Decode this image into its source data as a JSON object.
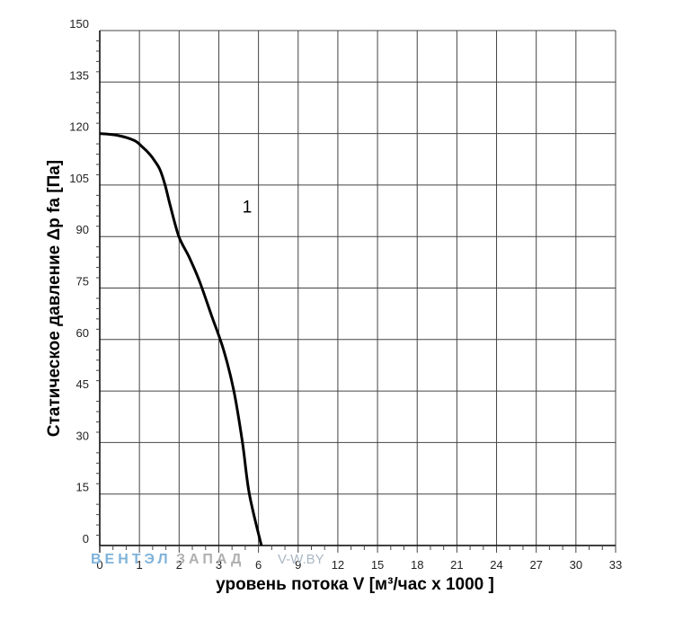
{
  "chart_data": {
    "type": "line",
    "xlabel": "уровень потока  V [м³/час x 1000 ]",
    "ylabel": "Статическое давление  Δp fa [Па]",
    "xlim": [
      0,
      30
    ],
    "ylim": [
      0,
      150
    ],
    "x_ticks": [
      "0",
      "1",
      "2",
      "3",
      "6",
      "9",
      "12",
      "15",
      "18",
      "21",
      "24",
      "27",
      "30",
      "33"
    ],
    "y_ticks": [
      0,
      15,
      30,
      45,
      60,
      75,
      90,
      105,
      120,
      135,
      150
    ],
    "grid": true,
    "series": [
      {
        "name": "1",
        "x": [
          0,
          1.0,
          2.0,
          2.5,
          2.9,
          3.2,
          3.5,
          3.8,
          4.1,
          4.6,
          5.2,
          5.8,
          6.5,
          7.2,
          7.8,
          8.3,
          8.7,
          9.4
        ],
        "y": [
          120,
          119.5,
          118,
          116,
          114,
          112,
          109.5,
          105,
          99,
          90,
          84,
          77,
          67,
          57,
          45,
          30,
          15,
          0
        ]
      }
    ],
    "annotations": [
      {
        "text": "1",
        "x": 8.3,
        "y": 97
      }
    ]
  },
  "watermark": {
    "part1": "ВЕНТЭЛ",
    "part2": "ЗАПАД",
    "url": "V-W.BY",
    "color1": "#7fb2d9",
    "color2": "#b0b0b0"
  }
}
